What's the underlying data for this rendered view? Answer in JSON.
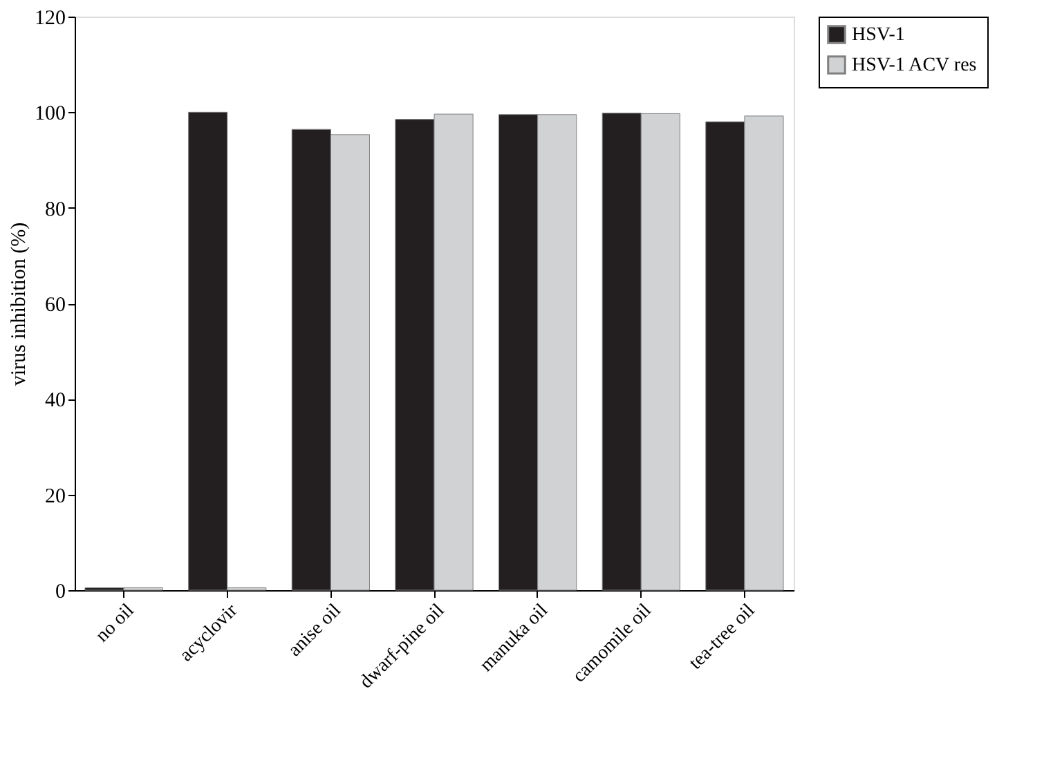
{
  "chart_data": {
    "type": "bar",
    "ylabel": "virus inhibition (%)",
    "categories": [
      "no oil",
      "acyclovir",
      "anise oil",
      "dwarf-pine oil",
      "manuka oil",
      "camomile oil",
      "tea-tree oil"
    ],
    "series": [
      {
        "name": "HSV-1",
        "color": "#231f20",
        "values": [
          0.5,
          100,
          96.4,
          98.5,
          99.5,
          99.8,
          98
        ]
      },
      {
        "name": "HSV-1 ACV res",
        "color": "#d1d2d4",
        "values": [
          0.5,
          0.5,
          95.3,
          99.6,
          99.5,
          99.7,
          99.2
        ]
      }
    ],
    "ylim": [
      0,
      120
    ],
    "yticks": [
      0,
      20,
      40,
      60,
      80,
      100,
      120
    ],
    "grid": false,
    "legend": "right"
  }
}
